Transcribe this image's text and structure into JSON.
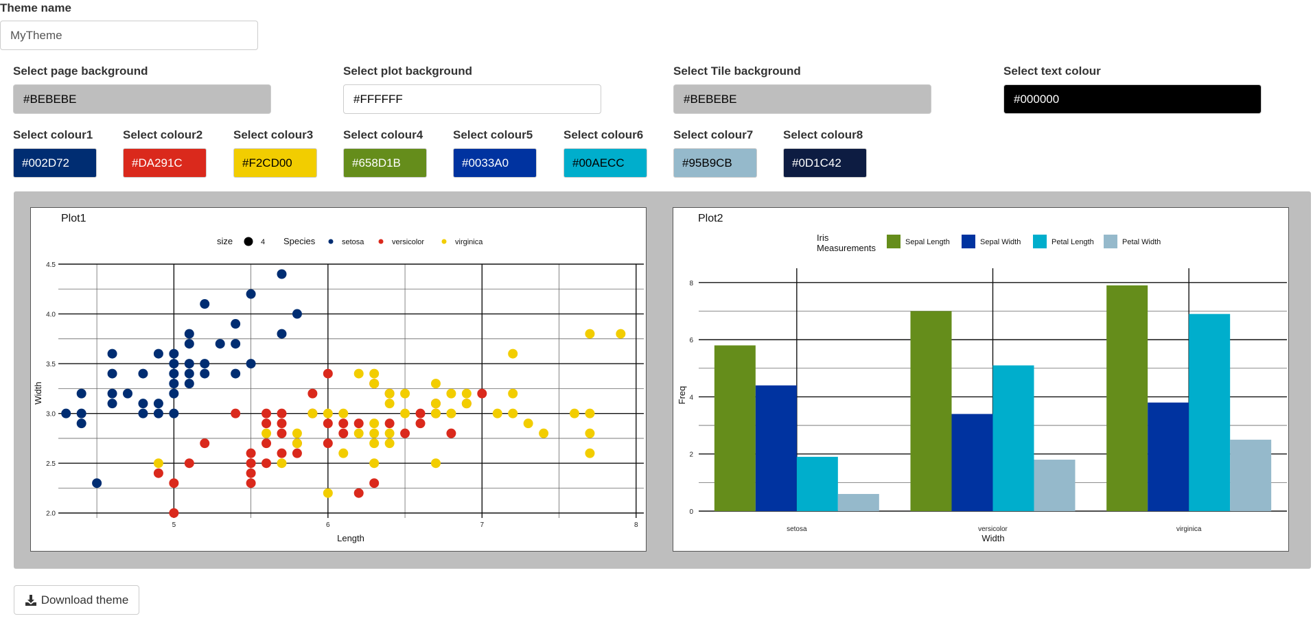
{
  "theme_name": {
    "label": "Theme name",
    "value": "MyTheme"
  },
  "backgrounds": [
    {
      "label": "Select page background",
      "value": "#BEBEBE",
      "color": "#BEBEBE",
      "text_color": "#000000"
    },
    {
      "label": "Select plot background",
      "value": "#FFFFFF",
      "color": "#FFFFFF",
      "text_color": "#000000"
    },
    {
      "label": "Select Tile background",
      "value": "#BEBEBE",
      "color": "#BEBEBE",
      "text_color": "#000000"
    },
    {
      "label": "Select text colour",
      "value": "#000000",
      "color": "#000000",
      "text_color": "#FFFFFF"
    }
  ],
  "colours": [
    {
      "label": "Select colour1",
      "value": "#002D72",
      "color": "#002D72",
      "text_color": "#FFFFFF"
    },
    {
      "label": "Select colour2",
      "value": "#DA291C",
      "color": "#DA291C",
      "text_color": "#FFFFFF"
    },
    {
      "label": "Select colour3",
      "value": "#F2CD00",
      "color": "#F2CD00",
      "text_color": "#000000"
    },
    {
      "label": "Select colour4",
      "value": "#658D1B",
      "color": "#658D1B",
      "text_color": "#FFFFFF"
    },
    {
      "label": "Select colour5",
      "value": "#0033A0",
      "color": "#0033A0",
      "text_color": "#FFFFFF"
    },
    {
      "label": "Select colour6",
      "value": "#00AECC",
      "color": "#00AECC",
      "text_color": "#000000"
    },
    {
      "label": "Select colour7",
      "value": "#95B9CB",
      "color": "#95B9CB",
      "text_color": "#000000"
    },
    {
      "label": "Select colour8",
      "value": "#0D1C42",
      "color": "#0D1C42",
      "text_color": "#FFFFFF"
    }
  ],
  "download_button": {
    "label": "Download theme",
    "icon": "download-icon"
  },
  "chart_data": [
    {
      "type": "scatter",
      "title": "Plot1",
      "xlabel": "Length",
      "ylabel": "Width",
      "xlim": [
        4.25,
        8.05
      ],
      "ylim": [
        1.95,
        4.5
      ],
      "xticks": [
        5,
        6,
        7,
        8
      ],
      "yticks": [
        2.0,
        2.5,
        3.0,
        3.5,
        4.0,
        4.5
      ],
      "grid": true,
      "legend": {
        "position": "top",
        "size_title": "size",
        "size_value": "4",
        "title": "Species",
        "entries": [
          "setosa",
          "versicolor",
          "virginica"
        ]
      },
      "series": [
        {
          "name": "setosa",
          "color": "#002D72",
          "points": [
            [
              4.3,
              3.0
            ],
            [
              4.4,
              3.2
            ],
            [
              4.4,
              3.0
            ],
            [
              4.4,
              2.9
            ],
            [
              4.5,
              2.3
            ],
            [
              4.6,
              3.6
            ],
            [
              4.6,
              3.4
            ],
            [
              4.6,
              3.2
            ],
            [
              4.6,
              3.1
            ],
            [
              4.7,
              3.2
            ],
            [
              4.8,
              3.4
            ],
            [
              4.8,
              3.1
            ],
            [
              4.8,
              3.0
            ],
            [
              4.9,
              3.6
            ],
            [
              4.9,
              3.1
            ],
            [
              4.9,
              3.0
            ],
            [
              5.0,
              3.6
            ],
            [
              5.0,
              3.5
            ],
            [
              5.0,
              3.4
            ],
            [
              5.0,
              3.3
            ],
            [
              5.0,
              3.2
            ],
            [
              5.0,
              3.0
            ],
            [
              5.1,
              3.8
            ],
            [
              5.1,
              3.7
            ],
            [
              5.1,
              3.5
            ],
            [
              5.1,
              3.4
            ],
            [
              5.1,
              3.3
            ],
            [
              5.2,
              4.1
            ],
            [
              5.2,
              3.5
            ],
            [
              5.2,
              3.4
            ],
            [
              5.3,
              3.7
            ],
            [
              5.4,
              3.9
            ],
            [
              5.4,
              3.7
            ],
            [
              5.4,
              3.4
            ],
            [
              5.5,
              4.2
            ],
            [
              5.5,
              3.5
            ],
            [
              5.7,
              4.4
            ],
            [
              5.7,
              3.8
            ],
            [
              5.8,
              4.0
            ]
          ]
        },
        {
          "name": "versicolor",
          "color": "#DA291C",
          "points": [
            [
              4.9,
              2.4
            ],
            [
              5.0,
              2.3
            ],
            [
              5.0,
              2.0
            ],
            [
              5.1,
              2.5
            ],
            [
              5.2,
              2.7
            ],
            [
              5.4,
              3.0
            ],
            [
              5.5,
              2.6
            ],
            [
              5.5,
              2.5
            ],
            [
              5.5,
              2.4
            ],
            [
              5.5,
              2.3
            ],
            [
              5.6,
              3.0
            ],
            [
              5.6,
              2.9
            ],
            [
              5.6,
              2.7
            ],
            [
              5.6,
              2.5
            ],
            [
              5.7,
              3.0
            ],
            [
              5.7,
              2.9
            ],
            [
              5.7,
              2.8
            ],
            [
              5.7,
              2.6
            ],
            [
              5.8,
              2.7
            ],
            [
              5.8,
              2.6
            ],
            [
              5.9,
              3.2
            ],
            [
              5.9,
              3.0
            ],
            [
              6.0,
              3.4
            ],
            [
              6.0,
              2.9
            ],
            [
              6.0,
              2.7
            ],
            [
              6.1,
              2.9
            ],
            [
              6.1,
              2.8
            ],
            [
              6.2,
              2.9
            ],
            [
              6.2,
              2.2
            ],
            [
              6.3,
              3.3
            ],
            [
              6.3,
              2.3
            ],
            [
              6.4,
              3.2
            ],
            [
              6.4,
              2.9
            ],
            [
              6.5,
              2.8
            ],
            [
              6.6,
              3.0
            ],
            [
              6.6,
              2.9
            ],
            [
              6.7,
              3.1
            ],
            [
              6.7,
              3.0
            ],
            [
              6.8,
              2.8
            ],
            [
              6.9,
              3.1
            ],
            [
              7.0,
              3.2
            ]
          ]
        },
        {
          "name": "virginica",
          "color": "#F2CD00",
          "points": [
            [
              4.9,
              2.5
            ],
            [
              5.6,
              2.8
            ],
            [
              5.7,
              2.5
            ],
            [
              5.8,
              2.8
            ],
            [
              5.8,
              2.7
            ],
            [
              5.9,
              3.0
            ],
            [
              6.0,
              3.0
            ],
            [
              6.0,
              2.2
            ],
            [
              6.1,
              3.0
            ],
            [
              6.1,
              2.6
            ],
            [
              6.2,
              3.4
            ],
            [
              6.2,
              2.8
            ],
            [
              6.3,
              3.4
            ],
            [
              6.3,
              3.3
            ],
            [
              6.3,
              2.9
            ],
            [
              6.3,
              2.8
            ],
            [
              6.3,
              2.7
            ],
            [
              6.3,
              2.5
            ],
            [
              6.4,
              3.2
            ],
            [
              6.4,
              3.1
            ],
            [
              6.4,
              2.8
            ],
            [
              6.4,
              2.7
            ],
            [
              6.5,
              3.2
            ],
            [
              6.5,
              3.0
            ],
            [
              6.7,
              3.3
            ],
            [
              6.7,
              3.1
            ],
            [
              6.7,
              3.0
            ],
            [
              6.7,
              2.5
            ],
            [
              6.8,
              3.2
            ],
            [
              6.8,
              3.0
            ],
            [
              6.9,
              3.2
            ],
            [
              6.9,
              3.1
            ],
            [
              7.1,
              3.0
            ],
            [
              7.2,
              3.6
            ],
            [
              7.2,
              3.2
            ],
            [
              7.2,
              3.0
            ],
            [
              7.3,
              2.9
            ],
            [
              7.4,
              2.8
            ],
            [
              7.6,
              3.0
            ],
            [
              7.7,
              3.8
            ],
            [
              7.7,
              3.0
            ],
            [
              7.7,
              2.8
            ],
            [
              7.7,
              2.6
            ],
            [
              7.9,
              3.8
            ]
          ]
        }
      ]
    },
    {
      "type": "bar",
      "title": "Plot2",
      "xlabel": "Width",
      "ylabel": "Freq",
      "ylim": [
        0,
        8.5
      ],
      "yticks": [
        0,
        2,
        4,
        6,
        8
      ],
      "grid": true,
      "legend": {
        "position": "top",
        "title_lines": [
          "Iris",
          "Measurements"
        ]
      },
      "categories": [
        "setosa",
        "versicolor",
        "virginica"
      ],
      "series": [
        {
          "name": "Sepal Length",
          "color": "#658D1B",
          "values": [
            5.8,
            7.0,
            7.9
          ]
        },
        {
          "name": "Sepal Width",
          "color": "#0033A0",
          "values": [
            4.4,
            3.4,
            3.8
          ]
        },
        {
          "name": "Petal Length",
          "color": "#00AECC",
          "values": [
            1.9,
            5.1,
            6.9
          ]
        },
        {
          "name": "Petal Width",
          "color": "#95B9CB",
          "values": [
            0.6,
            1.8,
            2.5
          ]
        }
      ]
    }
  ]
}
